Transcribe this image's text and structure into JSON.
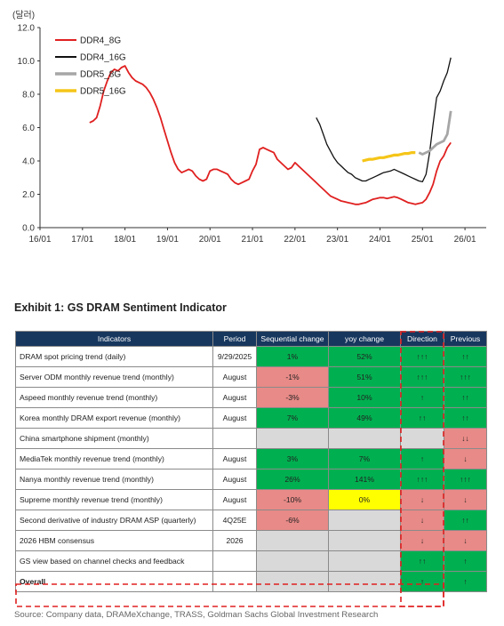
{
  "chart_data": {
    "type": "line",
    "unit_label": "(달러)",
    "x_ticks": [
      "16/01",
      "17/01",
      "18/01",
      "19/01",
      "20/01",
      "21/01",
      "22/01",
      "23/01",
      "24/01",
      "25/01",
      "26/01"
    ],
    "y_ticks": [
      "0.0",
      "2.0",
      "4.0",
      "6.0",
      "8.0",
      "10.0",
      "12.0"
    ],
    "ylim": [
      0,
      12
    ],
    "legend_position": "top-left",
    "series": [
      {
        "name": "DDR4_8G",
        "color": "#e02020",
        "points": [
          [
            "2017-03",
            6.3
          ],
          [
            "2017-04",
            6.4
          ],
          [
            "2017-05",
            6.6
          ],
          [
            "2017-06",
            7.3
          ],
          [
            "2017-07",
            8.2
          ],
          [
            "2017-08",
            8.8
          ],
          [
            "2017-09",
            9.3
          ],
          [
            "2017-10",
            9.5
          ],
          [
            "2017-11",
            9.4
          ],
          [
            "2017-12",
            9.6
          ],
          [
            "2018-01",
            9.7
          ],
          [
            "2018-02",
            9.3
          ],
          [
            "2018-03",
            9.0
          ],
          [
            "2018-04",
            8.8
          ],
          [
            "2018-05",
            8.7
          ],
          [
            "2018-06",
            8.6
          ],
          [
            "2018-07",
            8.4
          ],
          [
            "2018-08",
            8.1
          ],
          [
            "2018-09",
            7.7
          ],
          [
            "2018-10",
            7.2
          ],
          [
            "2018-11",
            6.6
          ],
          [
            "2018-12",
            5.9
          ],
          [
            "2019-01",
            5.2
          ],
          [
            "2019-02",
            4.5
          ],
          [
            "2019-03",
            3.9
          ],
          [
            "2019-04",
            3.5
          ],
          [
            "2019-05",
            3.3
          ],
          [
            "2019-06",
            3.4
          ],
          [
            "2019-07",
            3.5
          ],
          [
            "2019-08",
            3.4
          ],
          [
            "2019-09",
            3.1
          ],
          [
            "2019-10",
            2.9
          ],
          [
            "2019-11",
            2.8
          ],
          [
            "2019-12",
            2.9
          ],
          [
            "2020-01",
            3.4
          ],
          [
            "2020-02",
            3.5
          ],
          [
            "2020-03",
            3.5
          ],
          [
            "2020-04",
            3.4
          ],
          [
            "2020-05",
            3.3
          ],
          [
            "2020-06",
            3.2
          ],
          [
            "2020-07",
            2.9
          ],
          [
            "2020-08",
            2.7
          ],
          [
            "2020-09",
            2.6
          ],
          [
            "2020-10",
            2.7
          ],
          [
            "2020-11",
            2.8
          ],
          [
            "2020-12",
            2.9
          ],
          [
            "2021-01",
            3.4
          ],
          [
            "2021-02",
            3.8
          ],
          [
            "2021-03",
            4.7
          ],
          [
            "2021-04",
            4.8
          ],
          [
            "2021-05",
            4.7
          ],
          [
            "2021-06",
            4.6
          ],
          [
            "2021-07",
            4.5
          ],
          [
            "2021-08",
            4.1
          ],
          [
            "2021-09",
            3.9
          ],
          [
            "2021-10",
            3.7
          ],
          [
            "2021-11",
            3.5
          ],
          [
            "2021-12",
            3.6
          ],
          [
            "2022-01",
            3.9
          ],
          [
            "2022-02",
            3.7
          ],
          [
            "2022-03",
            3.5
          ],
          [
            "2022-04",
            3.3
          ],
          [
            "2022-05",
            3.1
          ],
          [
            "2022-06",
            2.9
          ],
          [
            "2022-07",
            2.7
          ],
          [
            "2022-08",
            2.5
          ],
          [
            "2022-09",
            2.3
          ],
          [
            "2022-10",
            2.1
          ],
          [
            "2022-11",
            1.9
          ],
          [
            "2022-12",
            1.8
          ],
          [
            "2023-01",
            1.7
          ],
          [
            "2023-02",
            1.6
          ],
          [
            "2023-03",
            1.55
          ],
          [
            "2023-04",
            1.5
          ],
          [
            "2023-05",
            1.45
          ],
          [
            "2023-06",
            1.4
          ],
          [
            "2023-07",
            1.4
          ],
          [
            "2023-08",
            1.45
          ],
          [
            "2023-09",
            1.5
          ],
          [
            "2023-10",
            1.6
          ],
          [
            "2023-11",
            1.7
          ],
          [
            "2023-12",
            1.75
          ],
          [
            "2024-01",
            1.8
          ],
          [
            "2024-02",
            1.8
          ],
          [
            "2024-03",
            1.75
          ],
          [
            "2024-04",
            1.8
          ],
          [
            "2024-05",
            1.85
          ],
          [
            "2024-06",
            1.8
          ],
          [
            "2024-07",
            1.7
          ],
          [
            "2024-08",
            1.6
          ],
          [
            "2024-09",
            1.5
          ],
          [
            "2024-10",
            1.45
          ],
          [
            "2024-11",
            1.4
          ],
          [
            "2024-12",
            1.45
          ],
          [
            "2025-01",
            1.5
          ],
          [
            "2025-02",
            1.7
          ],
          [
            "2025-03",
            2.1
          ],
          [
            "2025-04",
            2.6
          ],
          [
            "2025-05",
            3.4
          ],
          [
            "2025-06",
            4.0
          ],
          [
            "2025-07",
            4.3
          ],
          [
            "2025-08",
            4.8
          ],
          [
            "2025-09",
            5.1
          ]
        ]
      },
      {
        "name": "DDR4_16G",
        "color": "#111111",
        "points": [
          [
            "2022-07",
            6.6
          ],
          [
            "2022-08",
            6.2
          ],
          [
            "2022-09",
            5.6
          ],
          [
            "2022-10",
            5.0
          ],
          [
            "2022-11",
            4.6
          ],
          [
            "2022-12",
            4.2
          ],
          [
            "2023-01",
            3.9
          ],
          [
            "2023-02",
            3.7
          ],
          [
            "2023-03",
            3.5
          ],
          [
            "2023-04",
            3.3
          ],
          [
            "2023-05",
            3.2
          ],
          [
            "2023-06",
            3.0
          ],
          [
            "2023-07",
            2.9
          ],
          [
            "2023-08",
            2.8
          ],
          [
            "2023-09",
            2.8
          ],
          [
            "2023-10",
            2.9
          ],
          [
            "2023-11",
            3.0
          ],
          [
            "2023-12",
            3.1
          ],
          [
            "2024-01",
            3.2
          ],
          [
            "2024-02",
            3.3
          ],
          [
            "2024-03",
            3.35
          ],
          [
            "2024-04",
            3.4
          ],
          [
            "2024-05",
            3.5
          ],
          [
            "2024-06",
            3.4
          ],
          [
            "2024-07",
            3.3
          ],
          [
            "2024-08",
            3.2
          ],
          [
            "2024-09",
            3.1
          ],
          [
            "2024-10",
            3.0
          ],
          [
            "2024-11",
            2.9
          ],
          [
            "2024-12",
            2.8
          ],
          [
            "2025-01",
            2.75
          ],
          [
            "2025-02",
            3.2
          ],
          [
            "2025-03",
            4.5
          ],
          [
            "2025-04",
            6.2
          ],
          [
            "2025-05",
            7.8
          ],
          [
            "2025-06",
            8.2
          ],
          [
            "2025-07",
            8.8
          ],
          [
            "2025-08",
            9.3
          ],
          [
            "2025-09",
            10.2
          ]
        ]
      },
      {
        "name": "DDR5_8G",
        "color": "#a6a6a6",
        "points": [
          [
            "2024-12",
            4.5
          ],
          [
            "2025-01",
            4.4
          ],
          [
            "2025-02",
            4.5
          ],
          [
            "2025-03",
            4.6
          ],
          [
            "2025-04",
            4.8
          ],
          [
            "2025-05",
            5.0
          ],
          [
            "2025-06",
            5.1
          ],
          [
            "2025-07",
            5.2
          ],
          [
            "2025-08",
            5.6
          ],
          [
            "2025-09",
            7.0
          ]
        ]
      },
      {
        "name": "DDR5_16G",
        "color": "#f5c518",
        "points": [
          [
            "2023-08",
            4.0
          ],
          [
            "2023-09",
            4.05
          ],
          [
            "2023-10",
            4.1
          ],
          [
            "2023-11",
            4.1
          ],
          [
            "2023-12",
            4.15
          ],
          [
            "2024-01",
            4.2
          ],
          [
            "2024-02",
            4.2
          ],
          [
            "2024-03",
            4.25
          ],
          [
            "2024-04",
            4.3
          ],
          [
            "2024-05",
            4.35
          ],
          [
            "2024-06",
            4.35
          ],
          [
            "2024-07",
            4.4
          ],
          [
            "2024-08",
            4.45
          ],
          [
            "2024-09",
            4.45
          ],
          [
            "2024-10",
            4.5
          ],
          [
            "2024-11",
            4.5
          ]
        ]
      }
    ]
  },
  "exhibit": {
    "title": "Exhibit 1: GS DRAM Sentiment Indicator",
    "headers": [
      "Indicators",
      "Period",
      "Sequential change",
      "yoy change",
      "Direction",
      "Previous"
    ],
    "rows": [
      {
        "indicator": "DRAM spot pricing trend (daily)",
        "period": "9/29/2025",
        "seq": "1%",
        "seq_color": "green",
        "yoy": "52%",
        "yoy_color": "green",
        "direction": "↑↑↑",
        "dir_color": "green",
        "previous": "↑↑",
        "prev_color": "green"
      },
      {
        "indicator": "Server ODM monthly revenue trend (monthly)",
        "period": "August",
        "seq": "-1%",
        "seq_color": "red",
        "yoy": "51%",
        "yoy_color": "green",
        "direction": "↑↑↑",
        "dir_color": "green",
        "previous": "↑↑↑",
        "prev_color": "green"
      },
      {
        "indicator": "Aspeed monthly revenue trend (monthly)",
        "period": "August",
        "seq": "-3%",
        "seq_color": "red",
        "yoy": "10%",
        "yoy_color": "green",
        "direction": "↑",
        "dir_color": "green",
        "previous": "↑↑",
        "prev_color": "green"
      },
      {
        "indicator": "Korea monthly DRAM export revenue (monthly)",
        "period": "August",
        "seq": "7%",
        "seq_color": "green",
        "yoy": "49%",
        "yoy_color": "green",
        "direction": "↑↑",
        "dir_color": "green",
        "previous": "↑↑",
        "prev_color": "green"
      },
      {
        "indicator": "China smartphone shipment (monthly)",
        "period": "",
        "seq": "",
        "seq_color": "grey",
        "yoy": "",
        "yoy_color": "grey",
        "direction": "",
        "dir_color": "grey",
        "previous": "↓↓",
        "prev_color": "red"
      },
      {
        "indicator": "MediaTek monthly revenue trend (monthly)",
        "period": "August",
        "seq": "3%",
        "seq_color": "green",
        "yoy": "7%",
        "yoy_color": "green",
        "direction": "↑",
        "dir_color": "green",
        "previous": "↓",
        "prev_color": "red"
      },
      {
        "indicator": "Nanya monthly revenue trend (monthly)",
        "period": "August",
        "seq": "26%",
        "seq_color": "green",
        "yoy": "141%",
        "yoy_color": "green",
        "direction": "↑↑↑",
        "dir_color": "green",
        "previous": "↑↑↑",
        "prev_color": "green"
      },
      {
        "indicator": "Supreme monthly revenue trend (monthly)",
        "period": "August",
        "seq": "-10%",
        "seq_color": "red",
        "yoy": "0%",
        "yoy_color": "yellow",
        "direction": "↓",
        "dir_color": "red",
        "previous": "↓",
        "prev_color": "red"
      },
      {
        "indicator": "Second derivative of industry DRAM ASP (quarterly)",
        "period": "4Q25E",
        "seq": "-6%",
        "seq_color": "red",
        "yoy": "",
        "yoy_color": "grey",
        "direction": "↓",
        "dir_color": "red",
        "previous": "↑↑",
        "prev_color": "green"
      },
      {
        "indicator": "2026 HBM consensus",
        "period": "2026",
        "seq": "",
        "seq_color": "grey",
        "yoy": "",
        "yoy_color": "grey",
        "direction": "↓",
        "dir_color": "red",
        "previous": "↓",
        "prev_color": "red"
      },
      {
        "indicator": "GS view based on channel checks and feedback",
        "period": "",
        "seq": "",
        "seq_color": "grey",
        "yoy": "",
        "yoy_color": "grey",
        "direction": "↑↑",
        "dir_color": "green",
        "previous": "↑",
        "prev_color": "green"
      },
      {
        "indicator": "Overall",
        "period": "",
        "seq": "",
        "seq_color": "grey",
        "yoy": "",
        "yoy_color": "grey",
        "direction": "↑",
        "dir_color": "green",
        "previous": "↑",
        "prev_color": "green",
        "bold": true
      }
    ],
    "source": "Source: Company data, DRAMeXchange, TRASS, Goldman Sachs Global Investment Research"
  }
}
